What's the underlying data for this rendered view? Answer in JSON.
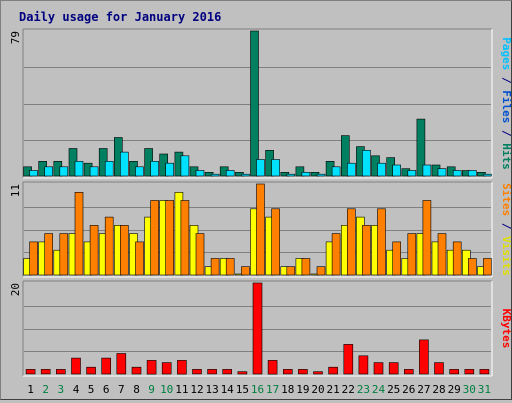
{
  "chart_data": {
    "type": "bar",
    "title": "Daily usage for January 2016",
    "days": [
      {
        "label": "1",
        "weekend": false
      },
      {
        "label": "2",
        "weekend": true
      },
      {
        "label": "3",
        "weekend": true
      },
      {
        "label": "4",
        "weekend": false
      },
      {
        "label": "5",
        "weekend": false
      },
      {
        "label": "6",
        "weekend": false
      },
      {
        "label": "7",
        "weekend": false
      },
      {
        "label": "8",
        "weekend": false
      },
      {
        "label": "9",
        "weekend": true
      },
      {
        "label": "10",
        "weekend": true
      },
      {
        "label": "11",
        "weekend": false
      },
      {
        "label": "12",
        "weekend": false
      },
      {
        "label": "13",
        "weekend": false
      },
      {
        "label": "14",
        "weekend": false
      },
      {
        "label": "15",
        "weekend": false
      },
      {
        "label": "16",
        "weekend": true
      },
      {
        "label": "17",
        "weekend": true
      },
      {
        "label": "18",
        "weekend": false
      },
      {
        "label": "19",
        "weekend": false
      },
      {
        "label": "20",
        "weekend": false
      },
      {
        "label": "21",
        "weekend": false
      },
      {
        "label": "22",
        "weekend": false
      },
      {
        "label": "23",
        "weekend": true
      },
      {
        "label": "24",
        "weekend": true
      },
      {
        "label": "25",
        "weekend": false
      },
      {
        "label": "26",
        "weekend": false
      },
      {
        "label": "27",
        "weekend": false
      },
      {
        "label": "28",
        "weekend": false
      },
      {
        "label": "29",
        "weekend": false
      },
      {
        "label": "30",
        "weekend": true
      },
      {
        "label": "31",
        "weekend": true
      }
    ],
    "panels": [
      {
        "id": "hits-panel",
        "max_label": "79",
        "max": 79,
        "series": [
          {
            "name": "Hits",
            "color": "#008060",
            "values": [
              5,
              8,
              8,
              15,
              7,
              15,
              21,
              8,
              15,
              12,
              13,
              5,
              2,
              5,
              2,
              79,
              14,
              2,
              5,
              2,
              8,
              22,
              16,
              11,
              10,
              4,
              31,
              6,
              5,
              3,
              2
            ]
          },
          {
            "name": "Files",
            "color": "#00e0ff",
            "values": [
              3,
              5,
              5,
              8,
              5,
              8,
              13,
              5,
              8,
              7,
              11,
              3,
              1,
              3,
              1,
              9,
              9,
              1,
              2,
              1,
              5,
              7,
              14,
              7,
              6,
              3,
              6,
              4,
              3,
              3,
              1
            ]
          }
        ],
        "legend": [
          {
            "text": "Pages",
            "color": "#00c0ff"
          },
          {
            "text": " / ",
            "color": "#000080"
          },
          {
            "text": "Files",
            "color": "#0050d0"
          },
          {
            "text": " / ",
            "color": "#000080"
          },
          {
            "text": "Hits",
            "color": "#008060"
          }
        ]
      },
      {
        "id": "visits-panel",
        "max_label": "11",
        "max": 11,
        "series": [
          {
            "name": "Visits",
            "color": "#ffff00",
            "values": [
              2,
              4,
              3,
              5,
              4,
              5,
              6,
              5,
              7,
              9,
              10,
              6,
              1,
              2,
              0,
              8,
              7,
              1,
              2,
              0,
              4,
              6,
              7,
              6,
              3,
              2,
              5,
              4,
              3,
              3,
              1
            ]
          },
          {
            "name": "Sites",
            "color": "#ff8000",
            "values": [
              4,
              5,
              5,
              10,
              6,
              7,
              6,
              4,
              9,
              9,
              9,
              5,
              2,
              2,
              1,
              11,
              8,
              1,
              2,
              1,
              5,
              8,
              6,
              8,
              4,
              5,
              9,
              5,
              4,
              2,
              2
            ]
          }
        ],
        "legend": [
          {
            "text": "Sites",
            "color": "#ff8000"
          },
          {
            "text": " / ",
            "color": "#000080"
          },
          {
            "text": "Visits",
            "color": "#e0e000"
          }
        ]
      },
      {
        "id": "kbytes-panel",
        "max_label": "20",
        "max": 20,
        "series": [
          {
            "name": "KBytes",
            "color": "#ff0000",
            "values": [
              1,
              1,
              1,
              3.5,
              1.5,
              3.5,
              4.5,
              1.5,
              3,
              2.5,
              3,
              1,
              1,
              1,
              0.5,
              20,
              3,
              1,
              1,
              0.5,
              1.5,
              6.5,
              4,
              2.5,
              2.5,
              1,
              7.5,
              2.5,
              1,
              1,
              1
            ]
          }
        ],
        "legend": [
          {
            "text": "KBytes",
            "color": "#ff0000"
          }
        ]
      }
    ],
    "weekday_color": "#000000",
    "weekend_color": "#008040",
    "background": "#c0c0c0",
    "plot_background": "#c0c0c0"
  }
}
